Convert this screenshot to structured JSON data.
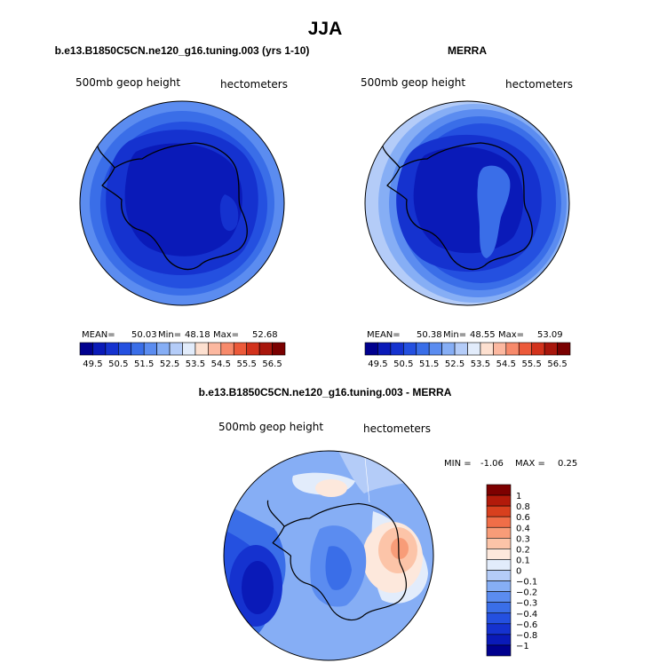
{
  "figure": {
    "title": "JJA",
    "panel_left_title": "b.e13.B1850C5CN.ne120_g16.tuning.003 (yrs 1-10)",
    "panel_right_title": "MERRA",
    "panel_diff_title": "b.e13.B1850C5CN.ne120_g16.tuning.003 - MERRA",
    "variable_label": "500mb geop height",
    "units_label": "hectometers"
  },
  "colors": {
    "abs_scale": [
      "#00008e",
      "#0a1ab8",
      "#1532cf",
      "#2450e0",
      "#3a6ee8",
      "#5b8cf0",
      "#86aef5",
      "#b4ccf8",
      "#e2ecfb",
      "#fde0d0",
      "#fcb8a0",
      "#f78a6b",
      "#ec5a3a",
      "#d2321c",
      "#a8160c",
      "#7a0000"
    ],
    "diff_scale": [
      "#00008e",
      "#0a1ab8",
      "#1532cf",
      "#2450e0",
      "#3a6ee8",
      "#5b8cf0",
      "#86aef5",
      "#b4ccf8",
      "#e2ecfb",
      "#fde8dc",
      "#fcc4a8",
      "#f89c78",
      "#f06e48",
      "#d8401e",
      "#b21a0a",
      "#7d0000"
    ]
  },
  "chart_data": [
    {
      "type": "heatmap",
      "title": "b.e13.B1850C5CN.ne120_g16.tuning.003 (yrs 1-10)",
      "variable": "500mb geop height",
      "units": "hectometers",
      "projection": "polar stereographic (south pole)",
      "stats": {
        "mean": "50.03",
        "min": "48.18",
        "max": "52.68"
      },
      "colorbar_levels": [
        49.5,
        50,
        50.5,
        51,
        51.5,
        52,
        52.5,
        53,
        53.5,
        54,
        54.5,
        55,
        55.5,
        56,
        56.5
      ],
      "colorbar_tick_labels": [
        "49.5",
        "50.5",
        "51.5",
        "52.5",
        "53.5",
        "54.5",
        "55.5",
        "56.5"
      ],
      "stat_labels": {
        "mean": "MEAN=",
        "min": "Min=",
        "max": "Max="
      }
    },
    {
      "type": "heatmap",
      "title": "MERRA",
      "variable": "500mb geop height",
      "units": "hectometers",
      "projection": "polar stereographic (south pole)",
      "stats": {
        "mean": "50.38",
        "min": "48.55",
        "max": "53.09"
      },
      "colorbar_levels": [
        49.5,
        50,
        50.5,
        51,
        51.5,
        52,
        52.5,
        53,
        53.5,
        54,
        54.5,
        55,
        55.5,
        56,
        56.5
      ],
      "colorbar_tick_labels": [
        "49.5",
        "50.5",
        "51.5",
        "52.5",
        "53.5",
        "54.5",
        "55.5",
        "56.5"
      ],
      "stat_labels": {
        "mean": "MEAN=",
        "min": "Min=",
        "max": "Max="
      }
    },
    {
      "type": "heatmap",
      "title": "b.e13.B1850C5CN.ne120_g16.tuning.003 - MERRA",
      "variable": "500mb geop height",
      "units": "hectometers",
      "projection": "polar stereographic (south pole)",
      "stats": {
        "min": "-1.06",
        "max": "0.25"
      },
      "stat_labels": {
        "min": "MIN =",
        "max": "MAX ="
      },
      "colorbar_levels": [
        -1,
        -0.8,
        -0.6,
        -0.4,
        -0.3,
        -0.2,
        -0.1,
        0,
        0.1,
        0.2,
        0.3,
        0.4,
        0.6,
        0.8,
        1
      ],
      "colorbar_tick_labels": [
        "1",
        "0.8",
        "0.6",
        "0.4",
        "0.3",
        "0.2",
        "0.1",
        "0",
        "−0.1",
        "−0.2",
        "−0.3",
        "−0.4",
        "−0.6",
        "−0.8",
        "−1"
      ]
    }
  ]
}
